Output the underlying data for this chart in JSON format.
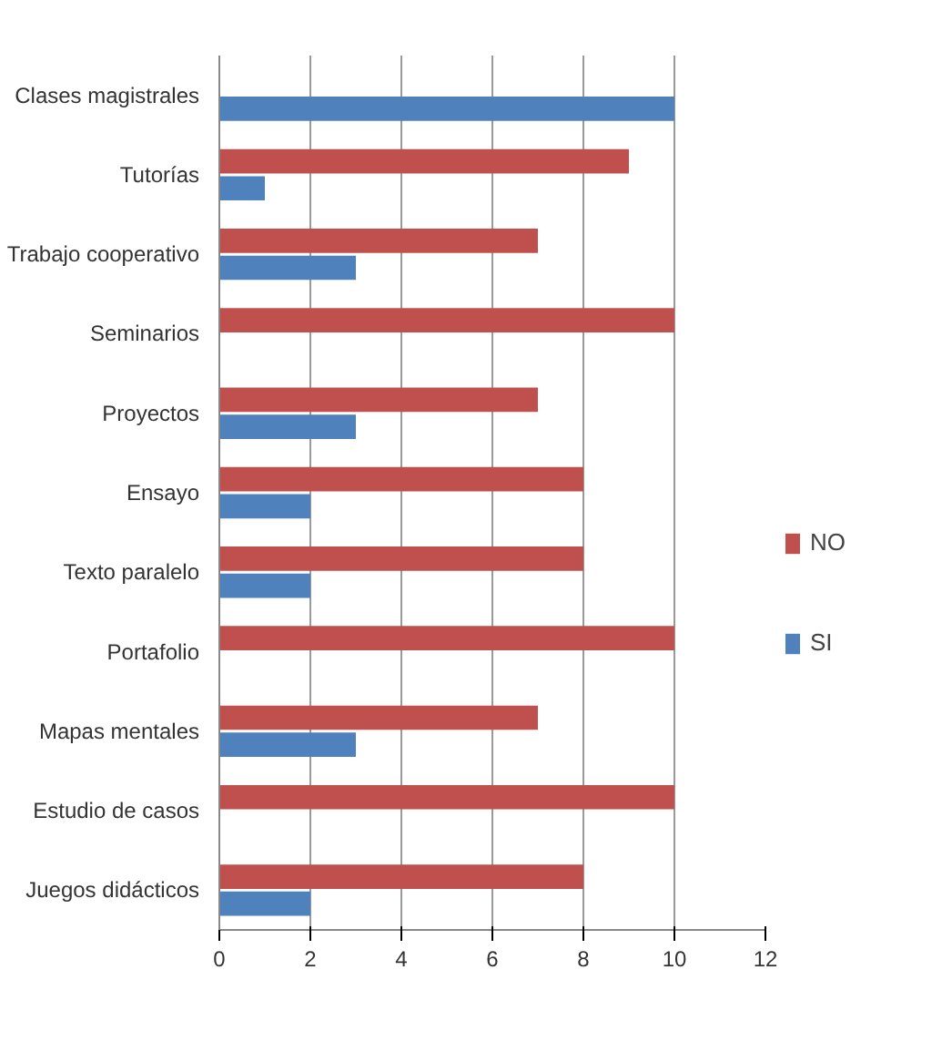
{
  "chart_data": {
    "type": "bar",
    "orientation": "horizontal",
    "categories": [
      "Clases magistrales",
      "Tutorías",
      "Trabajo cooperativo",
      "Seminarios",
      "Proyectos",
      "Ensayo",
      "Texto paralelo",
      "Portafolio",
      "Mapas mentales",
      "Estudio de casos",
      "Juegos didácticos"
    ],
    "series": [
      {
        "name": "NO",
        "color": "#c0504d",
        "values": [
          0,
          9,
          7,
          10,
          7,
          8,
          8,
          10,
          7,
          10,
          8
        ]
      },
      {
        "name": "SI",
        "color": "#4f81bd",
        "values": [
          10,
          1,
          3,
          0,
          3,
          2,
          2,
          0,
          3,
          0,
          2
        ]
      }
    ],
    "xlim": [
      0,
      12
    ],
    "xticks": [
      0,
      2,
      4,
      6,
      8,
      10,
      12
    ],
    "grid": "x",
    "legend": "right"
  }
}
